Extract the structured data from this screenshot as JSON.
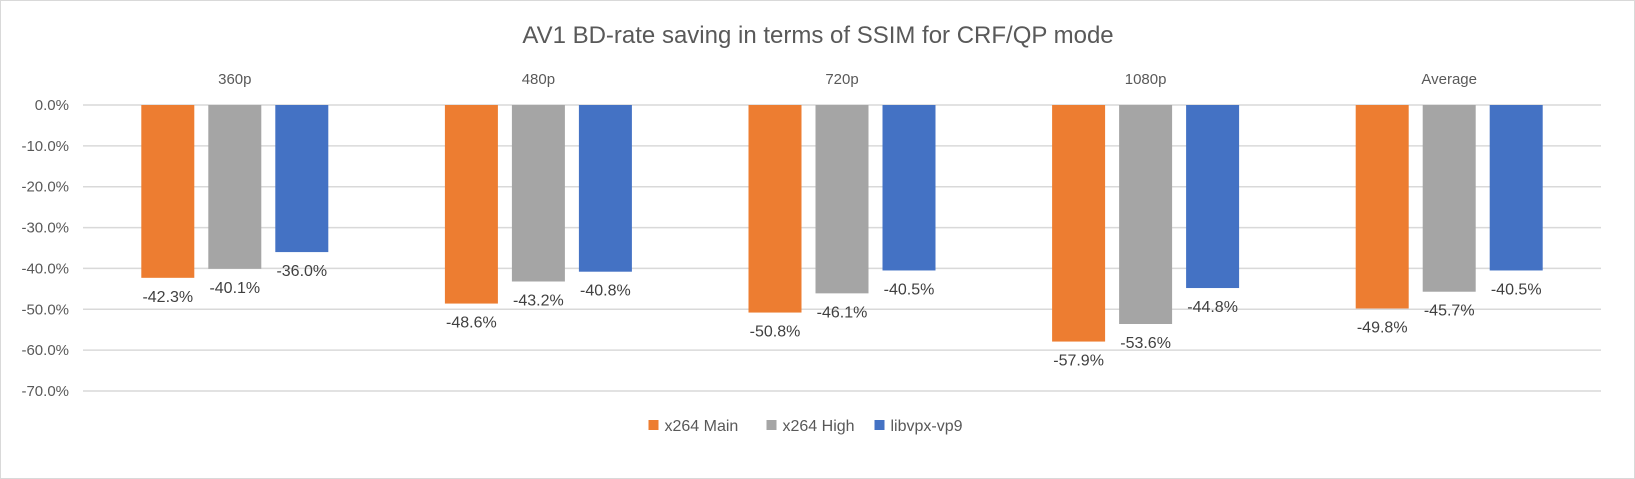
{
  "chart_data": {
    "type": "bar",
    "title": "AV1 BD-rate saving in terms of SSIM for CRF/QP mode",
    "categories": [
      "360p",
      "480p",
      "720p",
      "1080p",
      "Average"
    ],
    "series": [
      {
        "name": "x264 Main",
        "color": "#ED7D31",
        "values": [
          -42.3,
          -48.6,
          -50.8,
          -57.9,
          -49.8
        ],
        "labels": [
          "-42.3%",
          "-48.6%",
          "-50.8%",
          "-57.9%",
          "-49.8%"
        ]
      },
      {
        "name": "x264 High",
        "color": "#A5A5A5",
        "values": [
          -40.1,
          -43.2,
          -46.1,
          -53.6,
          -45.7
        ],
        "labels": [
          "-40.1%",
          "-43.2%",
          "-46.1%",
          "-53.6%",
          "-45.7%"
        ]
      },
      {
        "name": "libvpx-vp9",
        "color": "#4472C4",
        "values": [
          -36.0,
          -40.8,
          -40.5,
          -44.8,
          -40.5
        ],
        "labels": [
          "-36.0%",
          "-40.8%",
          "-40.5%",
          "-44.8%",
          "-40.5%"
        ]
      }
    ],
    "y_ticks": [
      0,
      -10,
      -20,
      -30,
      -40,
      -50,
      -60,
      -70
    ],
    "y_tick_labels": [
      "0.0%",
      "-10.0%",
      "-20.0%",
      "-30.0%",
      "-40.0%",
      "-50.0%",
      "-60.0%",
      "-70.0%"
    ],
    "ylim": [
      -70,
      0
    ],
    "xlabel": "",
    "ylabel": "",
    "grid": true,
    "legend_position": "bottom-center",
    "category_label_position": "top"
  }
}
